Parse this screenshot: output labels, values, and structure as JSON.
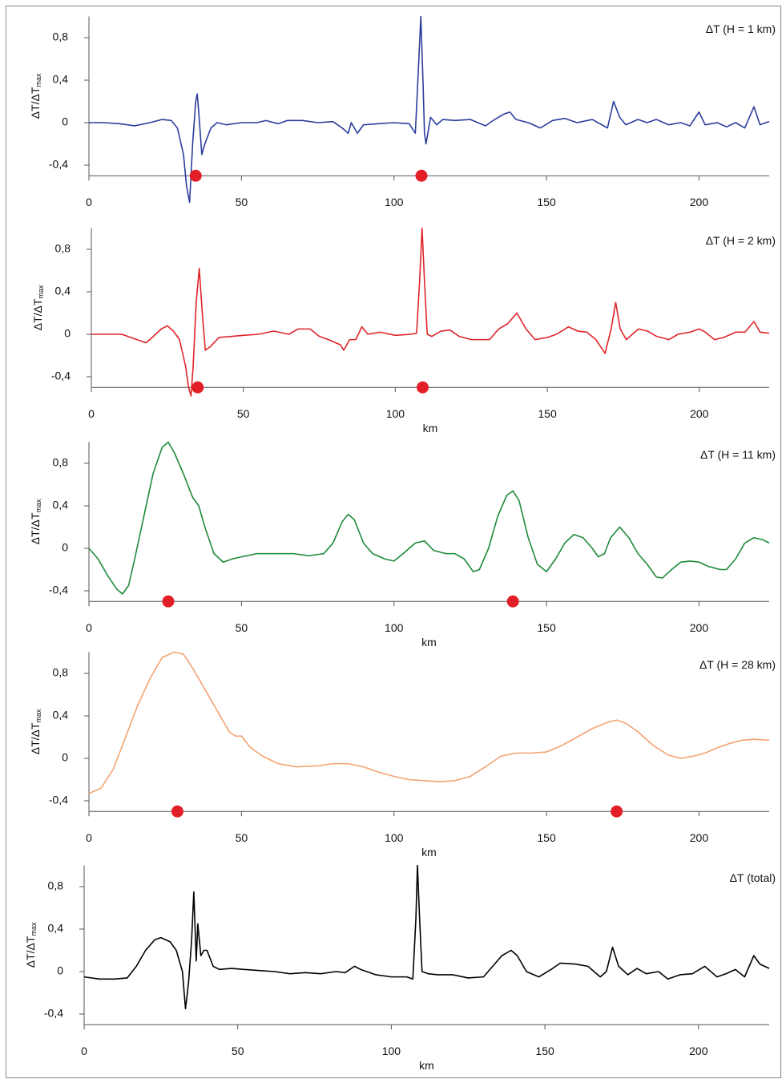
{
  "chart_data": [
    {
      "type": "line",
      "annotation": "ΔT (H = 1 km)",
      "ylabel": "ΔT/ΔT",
      "ylabel_sub": "max",
      "color": "#2b3d9c",
      "xlim": [
        0,
        223
      ],
      "ylim": [
        -0.5,
        1.0
      ],
      "xticks": [
        0,
        50,
        100,
        150,
        200
      ],
      "yticks": [
        {
          "value": -0.4,
          "label": "-0,4"
        },
        0,
        {
          "value": 0.4,
          "label": "0,4"
        },
        {
          "value": 0.8,
          "label": "0,8"
        }
      ],
      "x": [
        0,
        5,
        10,
        15,
        20,
        24,
        27,
        29,
        31,
        32,
        33,
        34,
        35,
        35.5,
        36,
        37,
        38,
        40,
        42,
        45,
        50,
        55,
        58,
        62,
        65,
        70,
        75,
        80,
        83,
        85,
        86,
        88,
        90,
        95,
        100,
        105,
        107,
        108,
        108.8,
        109.5,
        110,
        110.5,
        112,
        114,
        116,
        120,
        125,
        130,
        133,
        136,
        138,
        140,
        144,
        148,
        152,
        156,
        160,
        165,
        170,
        172,
        174,
        176,
        180,
        183,
        186,
        190,
        194,
        197,
        200,
        202,
        206,
        209,
        212,
        215,
        218,
        220,
        223
      ],
      "values": [
        0,
        0,
        -0.01,
        -0.03,
        0,
        0.03,
        0.02,
        -0.05,
        -0.3,
        -0.6,
        -0.75,
        -0.2,
        0.2,
        0.27,
        0.1,
        -0.3,
        -0.2,
        -0.05,
        0,
        -0.02,
        0,
        0,
        0.02,
        -0.01,
        0.02,
        0.02,
        0,
        0.01,
        -0.05,
        -0.1,
        0,
        -0.1,
        -0.02,
        -0.01,
        0,
        -0.01,
        -0.1,
        0.5,
        1.0,
        0.4,
        -0.1,
        -0.2,
        0.05,
        -0.02,
        0.03,
        0.02,
        0.03,
        -0.03,
        0.03,
        0.08,
        0.1,
        0.03,
        0,
        -0.05,
        0.02,
        0.04,
        0,
        0.03,
        -0.05,
        0.2,
        0.05,
        -0.02,
        0.03,
        0,
        0.03,
        -0.02,
        0,
        -0.03,
        0.1,
        -0.02,
        0,
        -0.04,
        0,
        -0.05,
        0.15,
        -0.02,
        0.01
      ],
      "markers": {
        "x": [
          35,
          109
        ],
        "y": [
          -0.5,
          -0.5
        ],
        "color": "#e21f26"
      }
    },
    {
      "type": "line",
      "annotation": "ΔT (H = 2 km)",
      "ylabel": "ΔT/ΔT",
      "ylabel_sub": "max",
      "xlabel": "km",
      "color": "#e0242a",
      "xlim": [
        0,
        223
      ],
      "ylim": [
        -0.5,
        1.0
      ],
      "xticks": [
        0,
        50,
        100,
        150,
        200
      ],
      "yticks": [
        {
          "value": -0.4,
          "label": "-0,4"
        },
        0,
        {
          "value": 0.4,
          "label": "0,4"
        },
        {
          "value": 0.8,
          "label": "0,8"
        }
      ],
      "x": [
        0,
        5,
        10,
        15,
        18,
        20,
        23,
        25,
        27,
        29,
        31,
        32,
        32.8,
        33.5,
        34.5,
        35.5,
        36.5,
        37.5,
        39,
        42,
        46,
        50,
        55,
        60,
        65,
        68,
        72,
        75,
        78,
        82,
        83,
        85,
        87,
        89,
        91,
        95,
        100,
        105,
        107,
        108,
        108.8,
        109.6,
        110.5,
        112,
        115,
        118,
        121,
        125,
        128,
        131,
        134,
        137,
        140,
        143,
        146,
        150,
        153,
        157,
        160,
        163,
        166,
        169,
        171,
        172.5,
        174,
        176,
        180,
        183,
        186,
        190,
        193,
        197,
        200,
        202,
        205,
        208,
        212,
        215,
        218,
        220,
        223
      ],
      "values": [
        0,
        0,
        0,
        -0.05,
        -0.08,
        -0.03,
        0.05,
        0.08,
        0.03,
        -0.05,
        -0.3,
        -0.5,
        -0.58,
        -0.3,
        0.3,
        0.62,
        0.2,
        -0.15,
        -0.12,
        -0.03,
        -0.02,
        -0.01,
        0,
        0.03,
        0,
        0.05,
        0.05,
        -0.02,
        -0.05,
        -0.1,
        -0.15,
        -0.05,
        -0.05,
        0.07,
        0,
        0.02,
        -0.01,
        0,
        0.01,
        0.5,
        1.0,
        0.5,
        0,
        -0.02,
        0.03,
        0.04,
        -0.02,
        -0.05,
        -0.05,
        -0.05,
        0.05,
        0.1,
        0.2,
        0.05,
        -0.05,
        -0.03,
        0,
        0.07,
        0.03,
        0.02,
        -0.05,
        -0.18,
        0.05,
        0.3,
        0.05,
        -0.05,
        0.05,
        0.03,
        -0.02,
        -0.05,
        0,
        0.02,
        0.05,
        0.02,
        -0.05,
        -0.03,
        0.02,
        0.02,
        0.12,
        0.02,
        0.01
      ],
      "markers": {
        "x": [
          35,
          109
        ],
        "y": [
          -0.5,
          -0.5
        ],
        "color": "#e21f26"
      }
    },
    {
      "type": "line",
      "annotation": "ΔT (H = 11 km)",
      "ylabel": "ΔT/ΔT",
      "ylabel_sub": "max",
      "xlabel": "km",
      "color": "#1e8a3b",
      "xlim": [
        0,
        223
      ],
      "ylim": [
        -0.5,
        1.0
      ],
      "xticks": [
        0,
        50,
        100,
        150,
        200
      ],
      "yticks": [
        {
          "value": -0.4,
          "label": "-0,4"
        },
        0,
        {
          "value": 0.4,
          "label": "0,4"
        },
        {
          "value": 0.8,
          "label": "0,8"
        }
      ],
      "x": [
        0,
        3,
        6,
        9,
        11,
        13,
        15,
        18,
        21,
        24,
        26,
        28,
        31,
        34,
        36,
        38,
        41,
        44,
        47,
        50,
        55,
        60,
        67,
        72,
        77,
        80,
        83,
        85,
        87,
        90,
        93,
        97,
        100,
        103,
        107,
        110,
        113,
        117,
        120,
        123,
        126,
        128,
        131,
        134,
        137,
        139,
        141,
        144,
        147,
        150,
        153,
        156,
        159,
        162,
        165,
        167,
        169,
        171,
        174,
        177,
        180,
        183,
        186,
        188,
        191,
        194,
        197,
        200,
        203,
        207,
        209,
        212,
        215,
        218,
        221,
        223
      ],
      "values": [
        0,
        -0.1,
        -0.25,
        -0.38,
        -0.43,
        -0.35,
        -0.1,
        0.3,
        0.7,
        0.95,
        1.0,
        0.9,
        0.7,
        0.48,
        0.4,
        0.2,
        -0.05,
        -0.13,
        -0.1,
        -0.08,
        -0.05,
        -0.05,
        -0.05,
        -0.07,
        -0.05,
        0.05,
        0.25,
        0.32,
        0.27,
        0.05,
        -0.05,
        -0.1,
        -0.12,
        -0.05,
        0.05,
        0.07,
        -0.02,
        -0.05,
        -0.05,
        -0.1,
        -0.22,
        -0.2,
        0,
        0.3,
        0.5,
        0.54,
        0.45,
        0.1,
        -0.15,
        -0.22,
        -0.1,
        0.05,
        0.13,
        0.1,
        0,
        -0.08,
        -0.05,
        0.1,
        0.2,
        0.1,
        -0.05,
        -0.15,
        -0.27,
        -0.28,
        -0.2,
        -0.13,
        -0.12,
        -0.13,
        -0.17,
        -0.2,
        -0.2,
        -0.1,
        0.05,
        0.1,
        0.08,
        0.05
      ],
      "markers": {
        "x": [
          26,
          139
        ],
        "y": [
          -0.5,
          -0.5
        ],
        "color": "#e21f26"
      }
    },
    {
      "type": "line",
      "annotation": "ΔT (H = 28 km)",
      "ylabel": "ΔT/ΔT",
      "ylabel_sub": "max",
      "xlabel": "km",
      "color": "#f4a271",
      "xlim": [
        0,
        223
      ],
      "ylim": [
        -0.5,
        1.0
      ],
      "xticks": [
        0,
        50,
        100,
        150,
        200
      ],
      "yticks": [
        {
          "value": -0.4,
          "label": "-0,4"
        },
        0,
        {
          "value": 0.4,
          "label": "0,4"
        },
        {
          "value": 0.8,
          "label": "0,8"
        }
      ],
      "x": [
        0,
        4,
        8,
        12,
        16,
        20,
        24,
        28,
        31,
        34,
        38,
        42,
        46,
        48,
        50,
        53,
        57,
        62,
        68,
        75,
        80,
        85,
        90,
        95,
        100,
        105,
        110,
        115,
        120,
        125,
        130,
        135,
        140,
        145,
        150,
        155,
        160,
        165,
        170,
        173,
        176,
        180,
        185,
        190,
        194,
        198,
        202,
        206,
        210,
        214,
        218,
        223
      ],
      "values": [
        -0.33,
        -0.28,
        -0.1,
        0.2,
        0.5,
        0.75,
        0.95,
        1.0,
        0.98,
        0.85,
        0.65,
        0.45,
        0.25,
        0.21,
        0.21,
        0.1,
        0.02,
        -0.05,
        -0.08,
        -0.07,
        -0.05,
        -0.05,
        -0.08,
        -0.13,
        -0.17,
        -0.2,
        -0.21,
        -0.22,
        -0.21,
        -0.17,
        -0.08,
        0.02,
        0.05,
        0.05,
        0.06,
        0.12,
        0.2,
        0.28,
        0.34,
        0.36,
        0.33,
        0.25,
        0.12,
        0.03,
        0,
        0.02,
        0.05,
        0.1,
        0.14,
        0.17,
        0.18,
        0.17
      ],
      "markers": {
        "x": [
          29,
          173
        ],
        "y": [
          -0.5,
          -0.5
        ],
        "color": "#e21f26"
      }
    },
    {
      "type": "line",
      "annotation": "ΔT (total)",
      "ylabel": "ΔT/ΔT",
      "ylabel_sub": "max",
      "xlabel": "km",
      "color": "#000000",
      "xlim": [
        0,
        223
      ],
      "ylim": [
        -0.5,
        1.0
      ],
      "xticks": [
        0,
        50,
        100,
        150,
        200
      ],
      "yticks": [
        {
          "value": -0.4,
          "label": "-0,4"
        },
        0,
        {
          "value": 0.4,
          "label": "0,4"
        },
        {
          "value": 0.8,
          "label": "0,8"
        }
      ],
      "x": [
        0,
        5,
        10,
        14,
        17,
        20,
        23,
        25,
        28,
        30,
        32,
        33,
        34,
        35,
        35.7,
        36.5,
        37,
        38,
        39,
        40,
        42,
        44,
        48,
        52,
        57,
        62,
        67,
        72,
        77,
        82,
        85,
        88,
        90,
        95,
        100,
        105,
        107,
        108,
        108.5,
        109.2,
        110,
        112,
        115,
        120,
        125,
        130,
        133,
        136,
        139,
        141,
        144,
        148,
        152,
        155,
        160,
        164,
        168,
        170,
        172,
        174,
        177,
        180,
        183,
        187,
        190,
        194,
        198,
        202,
        206,
        209,
        212,
        215,
        218,
        220,
        223
      ],
      "values": [
        -0.05,
        -0.07,
        -0.07,
        -0.06,
        0.05,
        0.2,
        0.3,
        0.32,
        0.28,
        0.2,
        0,
        -0.35,
        -0.1,
        0.3,
        0.75,
        0.1,
        0.45,
        0.15,
        0.2,
        0.2,
        0.05,
        0.02,
        0.03,
        0.02,
        0.01,
        0,
        -0.02,
        -0.01,
        -0.02,
        0,
        -0.01,
        0.05,
        0.02,
        -0.03,
        -0.05,
        -0.05,
        -0.07,
        0.5,
        1.0,
        0.5,
        0,
        -0.02,
        -0.03,
        -0.03,
        -0.06,
        -0.05,
        0.05,
        0.15,
        0.2,
        0.15,
        0,
        -0.05,
        0.02,
        0.08,
        0.07,
        0.05,
        -0.05,
        0,
        0.23,
        0.05,
        -0.03,
        0.03,
        -0.02,
        0,
        -0.07,
        -0.03,
        -0.02,
        0.05,
        -0.05,
        -0.02,
        0.02,
        -0.05,
        0.15,
        0.07,
        0.03
      ]
    }
  ]
}
